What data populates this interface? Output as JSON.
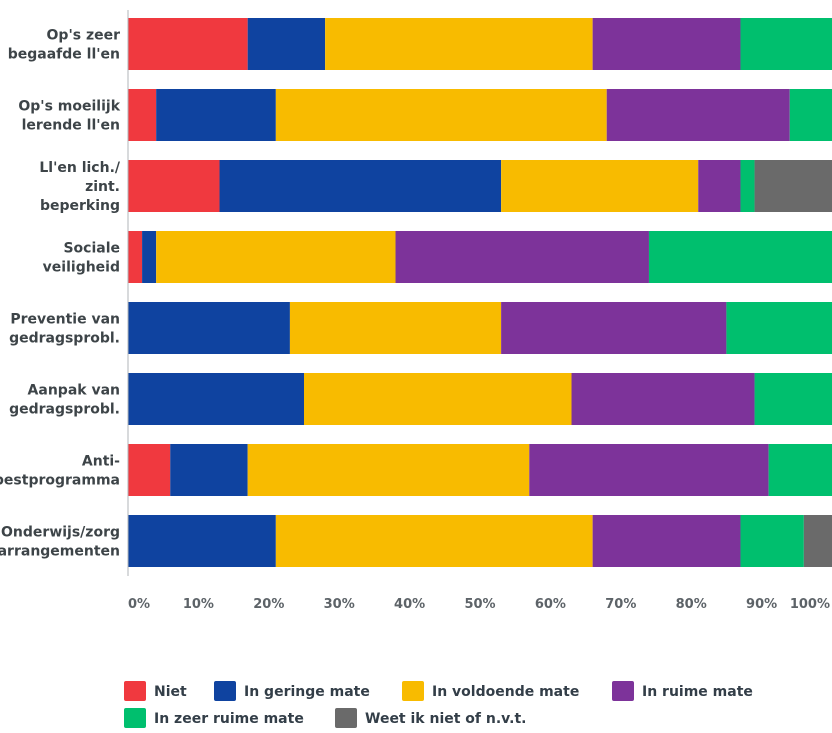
{
  "chart_data": {
    "type": "bar",
    "orientation": "horizontal",
    "stacked": true,
    "title": "",
    "xlabel": "",
    "ylabel": "",
    "xlim": [
      0,
      100
    ],
    "x_ticks": [
      "0%",
      "10%",
      "20%",
      "30%",
      "40%",
      "50%",
      "60%",
      "70%",
      "80%",
      "90%",
      "100%"
    ],
    "grid": false,
    "legend_position": "bottom",
    "categories": [
      [
        "Op's zeer",
        "begaafde ll'en"
      ],
      [
        "Op's moeilijk",
        "lerende ll'en"
      ],
      [
        "Ll'en lich./",
        "zint.",
        "beperking"
      ],
      [
        "Sociale",
        "veiligheid"
      ],
      [
        "Preventie van",
        "gedragsprobl."
      ],
      [
        "Aanpak van",
        "gedragsprobl."
      ],
      [
        "Anti-",
        "pestprogramma"
      ],
      [
        "Onderwijs/zorg",
        "arrangementen"
      ]
    ],
    "series": [
      {
        "name": "Niet",
        "color": "#f0393f",
        "values": [
          17,
          4,
          13,
          2,
          0,
          0,
          6,
          0
        ]
      },
      {
        "name": "In geringe mate",
        "color": "#0f43a0",
        "values": [
          11,
          17,
          40,
          2,
          23,
          25,
          11,
          21
        ]
      },
      {
        "name": "In voldoende mate",
        "color": "#f8bb00",
        "values": [
          38,
          47,
          28,
          34,
          30,
          38,
          40,
          45
        ]
      },
      {
        "name": "In ruime mate",
        "color": "#7d339a",
        "values": [
          21,
          26,
          6,
          36,
          32,
          26,
          34,
          21
        ]
      },
      {
        "name": "In zeer ruime mate",
        "color": "#00bf6e",
        "values": [
          13,
          6,
          2,
          26,
          15,
          11,
          9,
          9
        ]
      },
      {
        "name": "Weet ik niet of n.v.t.",
        "color": "#6a6a6a",
        "values": [
          0,
          0,
          11,
          0,
          0,
          0,
          0,
          4
        ]
      }
    ]
  }
}
